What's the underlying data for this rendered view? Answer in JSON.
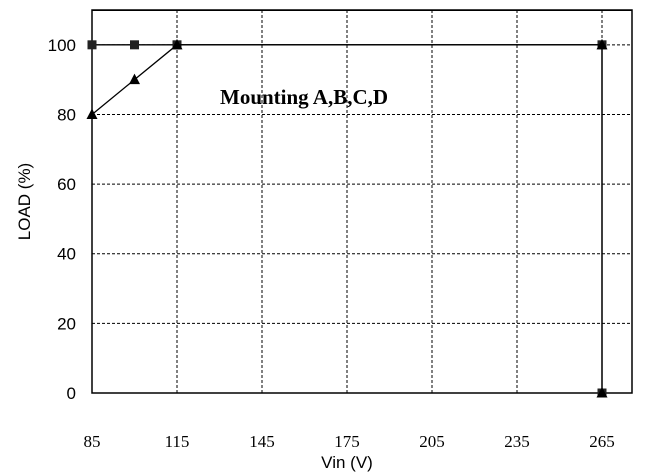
{
  "chart_data": {
    "type": "line",
    "title": "",
    "xlabel": "Vin (V)",
    "ylabel": "LOAD (%)",
    "xlim": [
      85,
      265
    ],
    "ylim": [
      0,
      110
    ],
    "x_ticks": [
      85,
      115,
      145,
      175,
      205,
      235,
      265
    ],
    "x_tick_labels": [
      "85",
      "115",
      "145",
      "175",
      "205",
      "235",
      "265"
    ],
    "y_ticks": [
      0,
      20,
      40,
      60,
      80,
      100
    ],
    "y_tick_labels": [
      "0",
      "20",
      "40",
      "60",
      "80",
      "100"
    ],
    "grid": true,
    "annotation": "Mounting A,B,C,D",
    "series": [
      {
        "marker": "square",
        "x": [
          85,
          100,
          115,
          265,
          265
        ],
        "y": [
          100,
          100,
          100,
          100,
          0
        ]
      },
      {
        "marker": "triangle",
        "x": [
          85,
          100,
          115,
          265,
          265
        ],
        "y": [
          80,
          90,
          100,
          100,
          0
        ]
      }
    ]
  }
}
